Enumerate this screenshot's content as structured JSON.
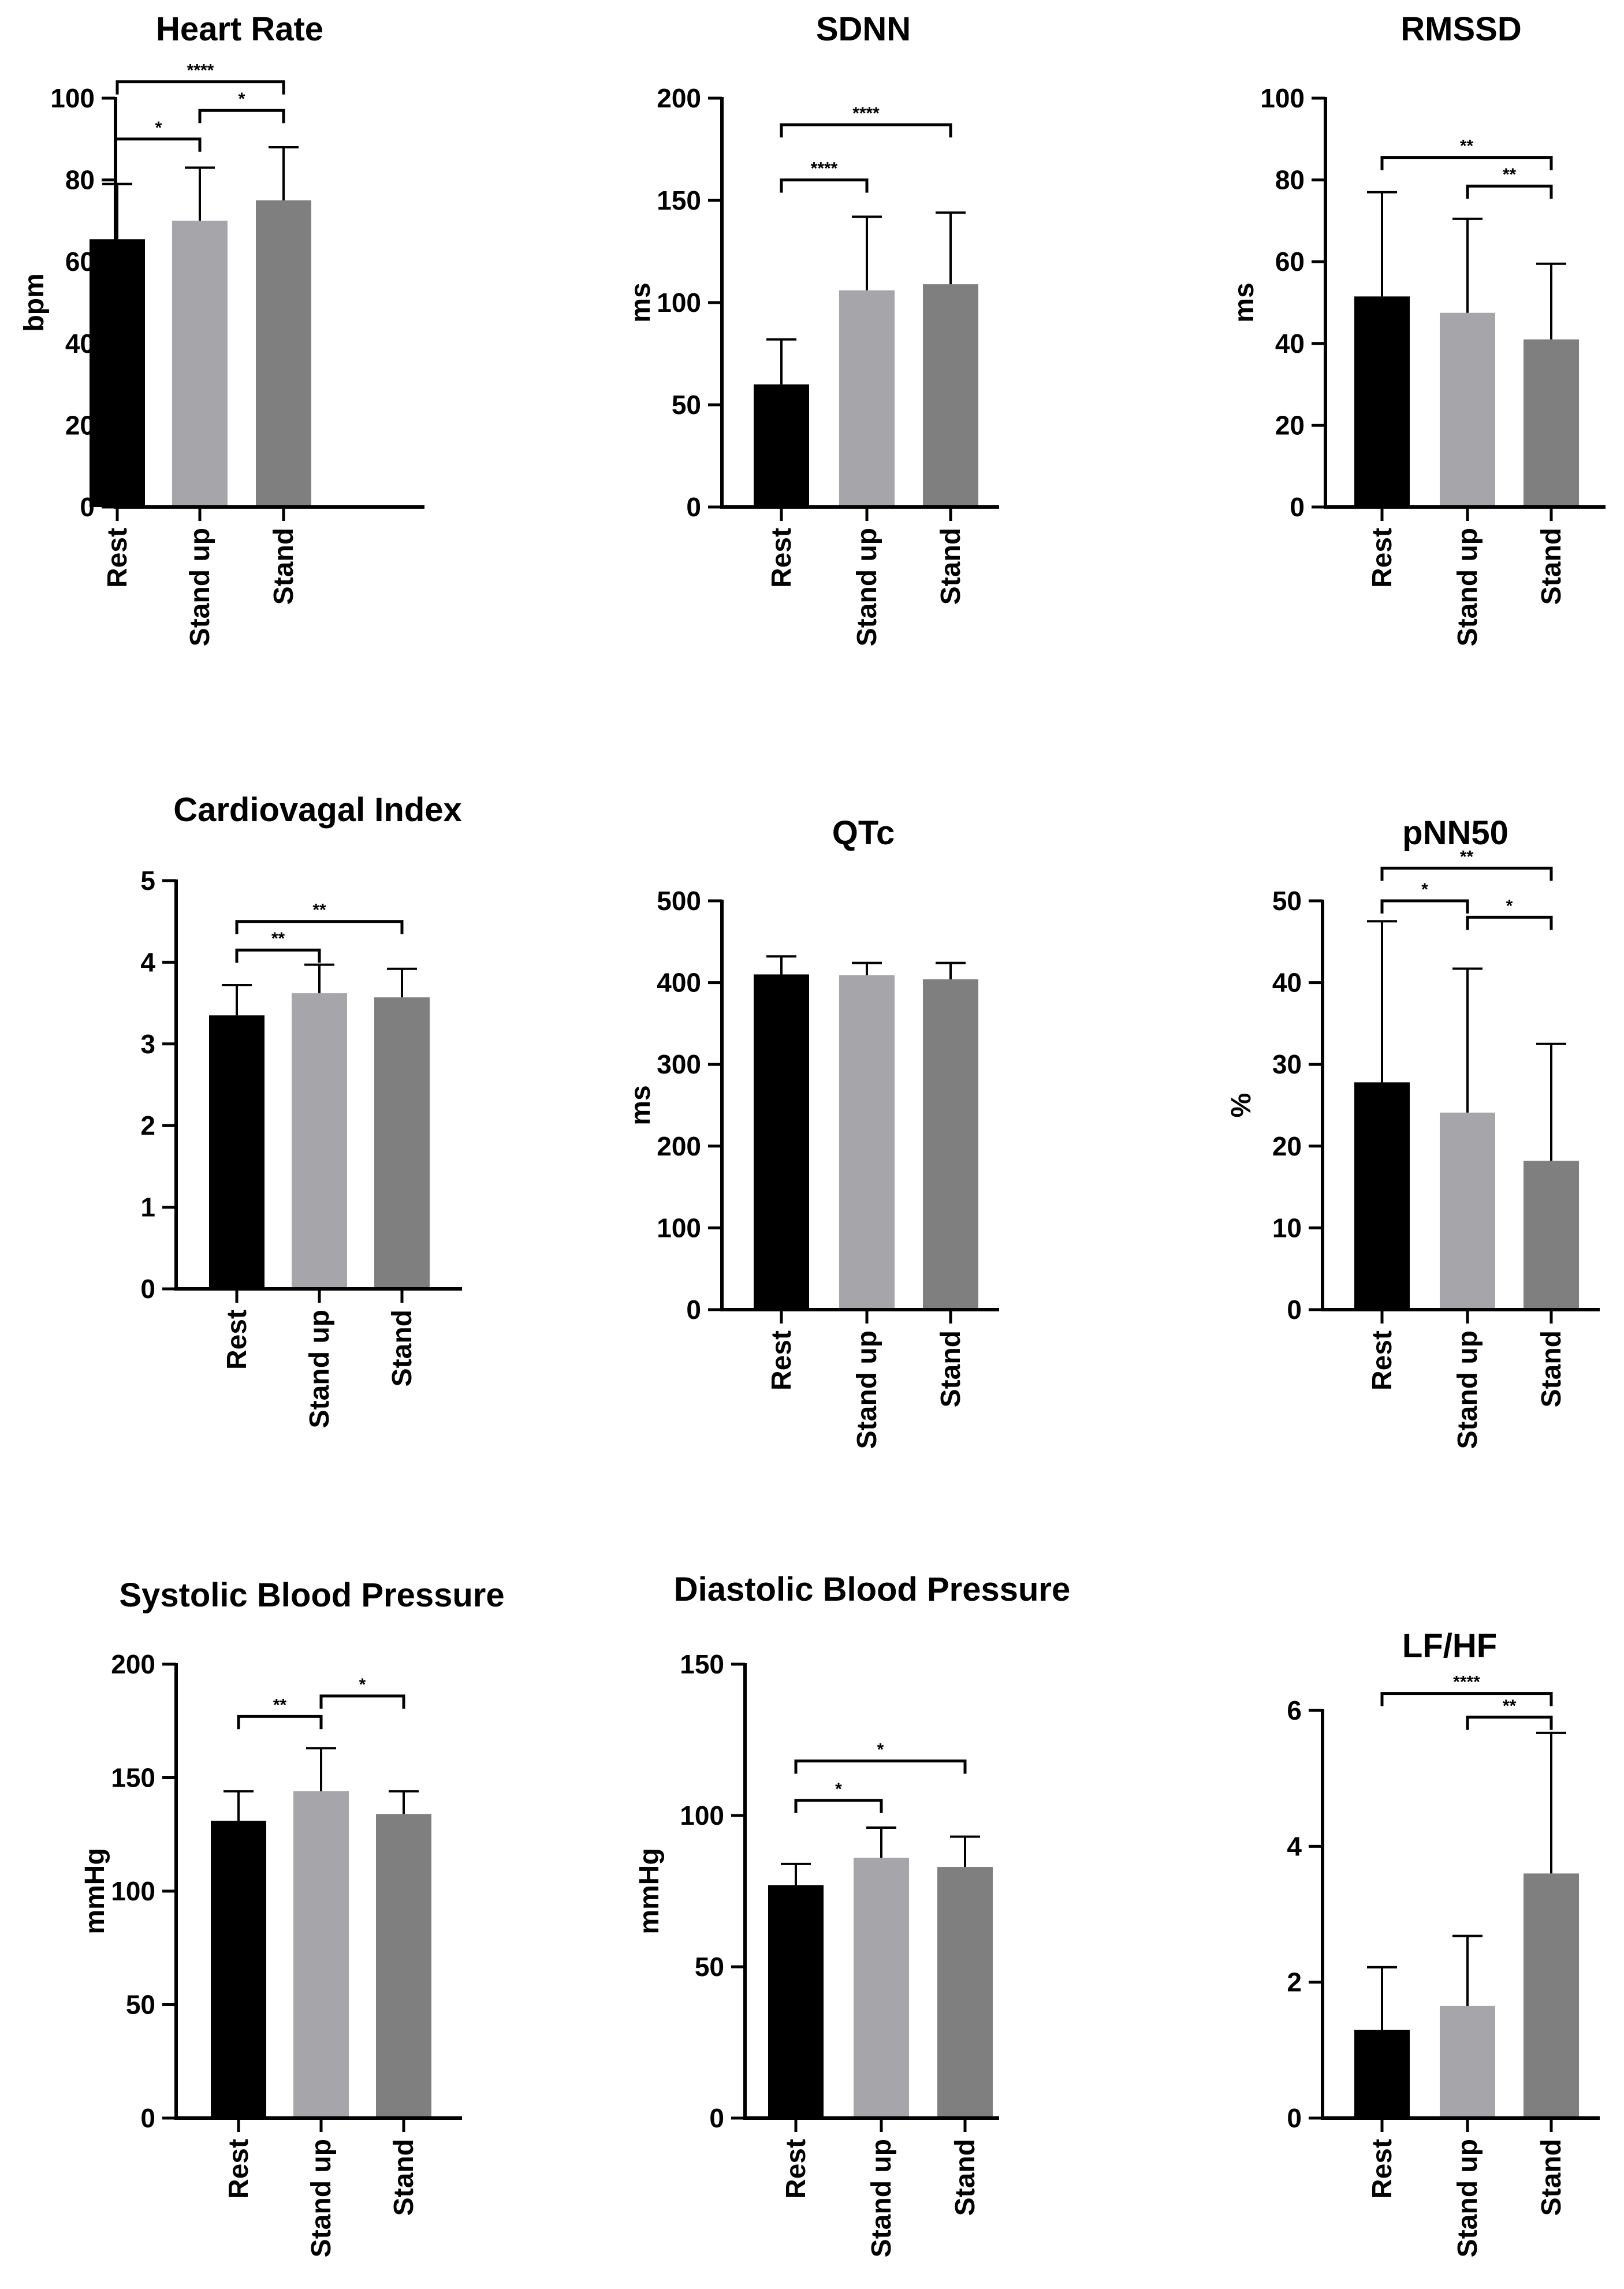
{
  "figure": {
    "categories": [
      "Rest",
      "Stand up",
      "Stand"
    ],
    "bar_colors": [
      "#000000",
      "#a6a5aa",
      "#7f7f7f"
    ]
  },
  "chart_data": [
    {
      "type": "bar",
      "title": "Heart  Rate",
      "ylabel": "bpm",
      "ylim": [
        0,
        100
      ],
      "yticks": [
        0,
        20,
        40,
        60,
        80,
        100
      ],
      "categories": [
        "Rest",
        "Stand up",
        "Stand"
      ],
      "values": [
        65.5,
        70,
        75
      ],
      "error_upper": [
        79,
        83,
        88
      ],
      "significance": [
        {
          "from": 0,
          "to": 1,
          "label": "*",
          "y": 90,
          "legs": [
            0,
            1
          ]
        },
        {
          "from": 1,
          "to": 2,
          "label": "*",
          "y": 97,
          "legs": [
            1,
            1
          ]
        },
        {
          "from": 0,
          "to": 2,
          "label": "****",
          "y": 104,
          "legs": [
            1,
            1
          ]
        }
      ]
    },
    {
      "type": "bar",
      "title": "SDNN",
      "ylabel": "ms",
      "ylim": [
        0,
        200
      ],
      "yticks": [
        0,
        50,
        100,
        150,
        200
      ],
      "categories": [
        "Rest",
        "Stand up",
        "Stand"
      ],
      "values": [
        60,
        106,
        109
      ],
      "error_upper": [
        82,
        142,
        144
      ],
      "significance": [
        {
          "from": 0,
          "to": 1,
          "label": "****",
          "y": 160,
          "legs": [
            1,
            1
          ]
        },
        {
          "from": 0,
          "to": 2,
          "label": "****",
          "y": 187,
          "legs": [
            1,
            1
          ]
        }
      ]
    },
    {
      "type": "bar",
      "title": "RMSSD",
      "ylabel": "ms",
      "ylim": [
        0,
        100
      ],
      "yticks": [
        0,
        20,
        40,
        60,
        80,
        100
      ],
      "categories": [
        "Rest",
        "Stand up",
        "Stand"
      ],
      "values": [
        51.5,
        47.5,
        41
      ],
      "error_upper": [
        77,
        70.5,
        59.5
      ],
      "significance": [
        {
          "from": 0,
          "to": 2,
          "label": "**",
          "y": 85.5,
          "legs": [
            1,
            1
          ]
        },
        {
          "from": 1,
          "to": 2,
          "label": "**",
          "y": 78.5,
          "legs": [
            1,
            1
          ]
        }
      ]
    },
    {
      "type": "bar",
      "title": "Cardiovagal Index",
      "ylabel": "",
      "ylim": [
        0,
        5
      ],
      "yticks": [
        0,
        1,
        2,
        3,
        4,
        5
      ],
      "categories": [
        "Rest",
        "Stand up",
        "Stand"
      ],
      "values": [
        3.35,
        3.62,
        3.57
      ],
      "error_upper": [
        3.72,
        3.97,
        3.92
      ],
      "significance": [
        {
          "from": 0,
          "to": 1,
          "label": "**",
          "y": 4.15,
          "legs": [
            1,
            1
          ]
        },
        {
          "from": 0,
          "to": 2,
          "label": "**",
          "y": 4.5,
          "legs": [
            1,
            1
          ]
        }
      ]
    },
    {
      "type": "bar",
      "title": "QTc",
      "ylabel": "ms",
      "ylim": [
        0,
        500
      ],
      "yticks": [
        0,
        100,
        200,
        300,
        400,
        500
      ],
      "categories": [
        "Rest",
        "Stand up",
        "Stand"
      ],
      "values": [
        410,
        409,
        404
      ],
      "error_upper": [
        432,
        424,
        424
      ],
      "significance": []
    },
    {
      "type": "bar",
      "title": "pNN50",
      "ylabel": "%",
      "ylim": [
        0,
        50
      ],
      "yticks": [
        0,
        10,
        20,
        30,
        40,
        50
      ],
      "categories": [
        "Rest",
        "Stand up",
        "Stand"
      ],
      "values": [
        27.8,
        24.1,
        18.2
      ],
      "error_upper": [
        47.5,
        41.7,
        32.5
      ],
      "significance": [
        {
          "from": 0,
          "to": 1,
          "label": "*",
          "y": 50,
          "legs": [
            1,
            1
          ]
        },
        {
          "from": 1,
          "to": 2,
          "label": "*",
          "y": 48,
          "legs": [
            1,
            1
          ]
        },
        {
          "from": 0,
          "to": 2,
          "label": "**",
          "y": 54,
          "legs": [
            1,
            1
          ]
        }
      ]
    },
    {
      "type": "bar",
      "title": "Systolic  Blood Pressure",
      "ylabel": "mmHg",
      "ylim": [
        0,
        200
      ],
      "yticks": [
        0,
        50,
        100,
        150,
        200
      ],
      "categories": [
        "Rest",
        "Stand up",
        "Stand"
      ],
      "values": [
        131,
        144,
        134
      ],
      "error_upper": [
        144,
        163,
        144
      ],
      "significance": [
        {
          "from": 0,
          "to": 1,
          "label": "**",
          "y": 177,
          "legs": [
            1,
            1
          ]
        },
        {
          "from": 1,
          "to": 2,
          "label": "*",
          "y": 186,
          "legs": [
            1,
            1
          ]
        }
      ]
    },
    {
      "type": "bar",
      "title": "Diastolic  Blood Pressure",
      "ylabel": "mmHg",
      "ylim": [
        0,
        150
      ],
      "yticks": [
        0,
        50,
        100,
        150
      ],
      "categories": [
        "Rest",
        "Stand up",
        "Stand"
      ],
      "values": [
        77,
        86,
        83
      ],
      "error_upper": [
        84,
        96,
        93
      ],
      "significance": [
        {
          "from": 0,
          "to": 1,
          "label": "*",
          "y": 105,
          "legs": [
            1,
            1
          ]
        },
        {
          "from": 0,
          "to": 2,
          "label": "*",
          "y": 118,
          "legs": [
            1,
            1
          ]
        }
      ]
    },
    {
      "type": "bar",
      "title": "LF/HF",
      "ylabel": "",
      "ylim": [
        0,
        6
      ],
      "yticks": [
        0,
        2,
        4,
        6
      ],
      "categories": [
        "Rest",
        "Stand up",
        "Stand"
      ],
      "values": [
        1.3,
        1.65,
        3.6
      ],
      "error_upper": [
        2.22,
        2.68,
        5.67
      ],
      "significance": [
        {
          "from": 0,
          "to": 2,
          "label": "****",
          "y": 6.25,
          "legs": [
            1,
            1
          ]
        },
        {
          "from": 1,
          "to": 2,
          "label": "**",
          "y": 5.9,
          "legs": [
            1,
            1
          ]
        }
      ]
    }
  ]
}
